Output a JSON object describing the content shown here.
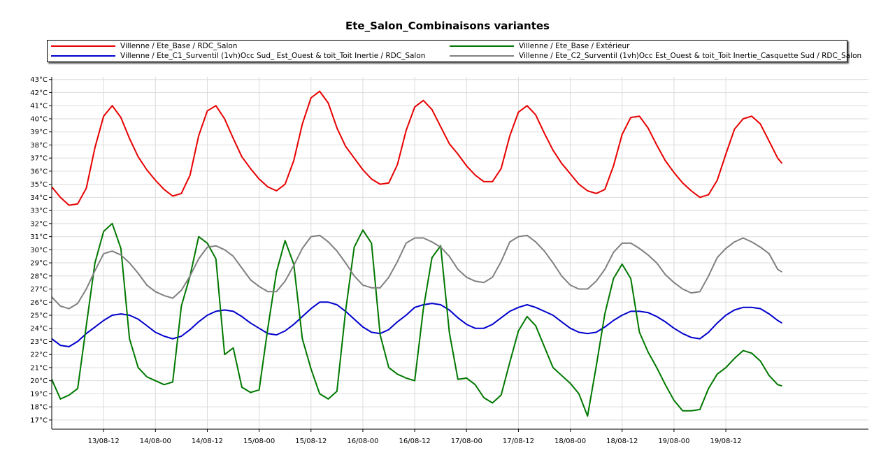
{
  "chart_data": {
    "type": "line",
    "title": "Ete_Salon_Combinaisons variantes",
    "xlabel": "",
    "ylabel": "",
    "x_unit": "hours from 12/08 12:00",
    "xlim": [
      0,
      189
    ],
    "ylim": [
      16.3,
      43.2
    ],
    "y_ticks": [
      17,
      18,
      19,
      20,
      21,
      22,
      23,
      24,
      25,
      26,
      27,
      28,
      29,
      30,
      31,
      32,
      33,
      34,
      35,
      36,
      37,
      38,
      39,
      40,
      41,
      42,
      43
    ],
    "y_tick_suffix": "°C",
    "x_ticks": [
      {
        "x": 12,
        "label": "13/08-12"
      },
      {
        "x": 24,
        "label": "14/08-00"
      },
      {
        "x": 36,
        "label": "14/08-12"
      },
      {
        "x": 48,
        "label": "15/08-00"
      },
      {
        "x": 60,
        "label": "15/08-12"
      },
      {
        "x": 72,
        "label": "16/08-00"
      },
      {
        "x": 84,
        "label": "16/08-12"
      },
      {
        "x": 96,
        "label": "17/08-00"
      },
      {
        "x": 108,
        "label": "17/08-12"
      },
      {
        "x": 120,
        "label": "18/08-00"
      },
      {
        "x": 132,
        "label": "18/08-12"
      },
      {
        "x": 144,
        "label": "19/08-00"
      },
      {
        "x": 156,
        "label": "19/08-12"
      }
    ],
    "grid": true,
    "legend_position": "top",
    "series": [
      {
        "name": "Villenne  /  Ete_Base / RDC_Salon",
        "color": "#e80000",
        "x": [
          0,
          2,
          4,
          6,
          8,
          10,
          12,
          14,
          16,
          18,
          20,
          22,
          24,
          26,
          28,
          30,
          32,
          34,
          36,
          38,
          40,
          42,
          44,
          46,
          48,
          50,
          52,
          54,
          56,
          58,
          60,
          62,
          64,
          66,
          68,
          70,
          72,
          74,
          76,
          78,
          80,
          82,
          84,
          86,
          88,
          90,
          92,
          94,
          96,
          98,
          100,
          102,
          104,
          106,
          108,
          110,
          112,
          114,
          116,
          118,
          120,
          122,
          124,
          126,
          128,
          130,
          132,
          134,
          136,
          138,
          140,
          142,
          144,
          146,
          148,
          150,
          152,
          154,
          156,
          158,
          160,
          162,
          164,
          166,
          168,
          169
        ],
        "y": [
          34.8,
          34.0,
          33.4,
          33.5,
          34.7,
          37.8,
          40.2,
          41.0,
          40.1,
          38.5,
          37.1,
          36.1,
          35.3,
          34.6,
          34.1,
          34.3,
          35.7,
          38.7,
          40.6,
          41.0,
          40.0,
          38.5,
          37.1,
          36.2,
          35.4,
          34.8,
          34.5,
          35.0,
          36.8,
          39.6,
          41.6,
          42.1,
          41.2,
          39.3,
          37.9,
          37.0,
          36.1,
          35.4,
          35.0,
          35.1,
          36.5,
          39.1,
          40.9,
          41.4,
          40.7,
          39.4,
          38.1,
          37.3,
          36.4,
          35.7,
          35.2,
          35.2,
          36.2,
          38.7,
          40.5,
          41.0,
          40.3,
          38.9,
          37.6,
          36.6,
          35.8,
          35.0,
          34.5,
          34.3,
          34.6,
          36.4,
          38.8,
          40.1,
          40.2,
          39.3,
          38.0,
          36.8,
          35.9,
          35.1,
          34.5,
          34.0,
          34.2,
          35.3,
          37.3,
          39.2,
          40.0,
          40.2,
          39.6,
          38.3,
          37.0,
          36.6
        ]
      },
      {
        "name": "Villenne  /  Ete_C1_Surventil (1vh)Occ Sud_ Est_Ouest & toit_Toit Inertie / RDC_Salon",
        "color": "#0000cc",
        "x": [
          0,
          2,
          4,
          6,
          8,
          10,
          12,
          14,
          16,
          18,
          20,
          22,
          24,
          26,
          28,
          30,
          32,
          34,
          36,
          38,
          40,
          42,
          44,
          46,
          48,
          50,
          52,
          54,
          56,
          58,
          60,
          62,
          64,
          66,
          68,
          70,
          72,
          74,
          76,
          78,
          80,
          82,
          84,
          86,
          88,
          90,
          92,
          94,
          96,
          98,
          100,
          102,
          104,
          106,
          108,
          110,
          112,
          114,
          116,
          118,
          120,
          122,
          124,
          126,
          128,
          130,
          132,
          134,
          136,
          138,
          140,
          142,
          144,
          146,
          148,
          150,
          152,
          154,
          156,
          158,
          160,
          162,
          164,
          166,
          168,
          169
        ],
        "y": [
          23.2,
          22.7,
          22.6,
          23.0,
          23.6,
          24.1,
          24.6,
          25.0,
          25.1,
          25.0,
          24.7,
          24.2,
          23.7,
          23.4,
          23.2,
          23.4,
          23.9,
          24.5,
          25.0,
          25.3,
          25.4,
          25.3,
          24.9,
          24.4,
          24.0,
          23.6,
          23.5,
          23.8,
          24.3,
          24.9,
          25.5,
          26.0,
          26.0,
          25.8,
          25.3,
          24.7,
          24.1,
          23.7,
          23.6,
          23.9,
          24.5,
          25.0,
          25.6,
          25.8,
          25.9,
          25.8,
          25.4,
          24.8,
          24.3,
          24.0,
          24.0,
          24.3,
          24.8,
          25.3,
          25.6,
          25.8,
          25.6,
          25.3,
          25.0,
          24.5,
          24.0,
          23.7,
          23.6,
          23.7,
          24.1,
          24.6,
          25.0,
          25.3,
          25.3,
          25.2,
          24.9,
          24.5,
          24.0,
          23.6,
          23.3,
          23.2,
          23.7,
          24.4,
          25.0,
          25.4,
          25.6,
          25.6,
          25.5,
          25.1,
          24.6,
          24.4
        ]
      },
      {
        "name": "Villenne  /  Ete_Base / Extérieur",
        "color": "#007800",
        "x": [
          0,
          2,
          4,
          6,
          8,
          10,
          12,
          14,
          16,
          18,
          20,
          22,
          24,
          26,
          28,
          30,
          32,
          34,
          36,
          38,
          40,
          42,
          44,
          46,
          48,
          50,
          52,
          54,
          56,
          58,
          60,
          62,
          64,
          66,
          68,
          70,
          72,
          74,
          76,
          78,
          80,
          82,
          84,
          86,
          88,
          90,
          92,
          94,
          96,
          98,
          100,
          102,
          104,
          106,
          108,
          110,
          112,
          114,
          116,
          118,
          120,
          122,
          124,
          126,
          128,
          130,
          132,
          134,
          136,
          138,
          140,
          142,
          144,
          146,
          148,
          150,
          152,
          154,
          156,
          158,
          160,
          162,
          164,
          166,
          168,
          169
        ],
        "y": [
          20.1,
          18.6,
          18.9,
          19.4,
          24.2,
          29.0,
          31.4,
          32.0,
          30.1,
          23.2,
          21.0,
          20.3,
          20.0,
          19.7,
          19.9,
          25.7,
          28.0,
          31.0,
          30.5,
          29.3,
          22.0,
          22.5,
          19.5,
          19.1,
          19.3,
          24.0,
          28.3,
          30.7,
          28.9,
          23.2,
          20.9,
          19.0,
          18.6,
          19.2,
          25.3,
          30.2,
          31.5,
          30.5,
          23.5,
          21.0,
          20.5,
          20.2,
          20.0,
          25.5,
          29.4,
          30.3,
          23.7,
          20.1,
          20.2,
          19.7,
          18.7,
          18.3,
          18.9,
          21.4,
          23.8,
          24.9,
          24.2,
          22.6,
          21.0,
          20.4,
          19.8,
          19.0,
          17.3,
          21.1,
          25.1,
          27.8,
          28.9,
          27.8,
          23.7,
          22.2,
          21.0,
          19.7,
          18.5,
          17.7,
          17.7,
          17.8,
          19.4,
          20.5,
          21.0,
          21.7,
          22.3,
          22.1,
          21.5,
          20.4,
          19.7,
          19.6
        ]
      },
      {
        "name": "Villenne  /  Ete_C2_Surventil (1vh)Occ Est_Ouest & toit_Toit Inertie_Casquette Sud / RDC_Salon",
        "color": "#808080",
        "x": [
          0,
          2,
          4,
          6,
          8,
          10,
          12,
          14,
          16,
          18,
          20,
          22,
          24,
          26,
          28,
          30,
          32,
          34,
          36,
          38,
          40,
          42,
          44,
          46,
          48,
          50,
          52,
          54,
          56,
          58,
          60,
          62,
          64,
          66,
          68,
          70,
          72,
          74,
          76,
          78,
          80,
          82,
          84,
          86,
          88,
          90,
          92,
          94,
          96,
          98,
          100,
          102,
          104,
          106,
          108,
          110,
          112,
          114,
          116,
          118,
          120,
          122,
          124,
          126,
          128,
          130,
          132,
          134,
          136,
          138,
          140,
          142,
          144,
          146,
          148,
          150,
          152,
          154,
          156,
          158,
          160,
          162,
          164,
          166,
          168,
          169
        ],
        "y": [
          26.4,
          25.7,
          25.5,
          25.9,
          27.0,
          28.4,
          29.7,
          29.9,
          29.6,
          29.0,
          28.2,
          27.3,
          26.8,
          26.5,
          26.3,
          26.9,
          28.0,
          29.3,
          30.2,
          30.3,
          30.0,
          29.5,
          28.6,
          27.7,
          27.2,
          26.8,
          26.8,
          27.6,
          28.8,
          30.1,
          31.0,
          31.1,
          30.6,
          29.9,
          29.0,
          28.0,
          27.3,
          27.1,
          27.1,
          27.9,
          29.1,
          30.5,
          30.9,
          30.9,
          30.6,
          30.2,
          29.5,
          28.5,
          27.9,
          27.6,
          27.5,
          27.9,
          29.1,
          30.6,
          31.0,
          31.1,
          30.6,
          29.9,
          29.0,
          28.0,
          27.3,
          27.0,
          27.0,
          27.6,
          28.5,
          29.8,
          30.5,
          30.5,
          30.1,
          29.6,
          29.0,
          28.1,
          27.5,
          27.0,
          26.7,
          26.8,
          28.0,
          29.4,
          30.1,
          30.6,
          30.9,
          30.6,
          30.2,
          29.7,
          28.5,
          28.3
        ]
      }
    ]
  }
}
